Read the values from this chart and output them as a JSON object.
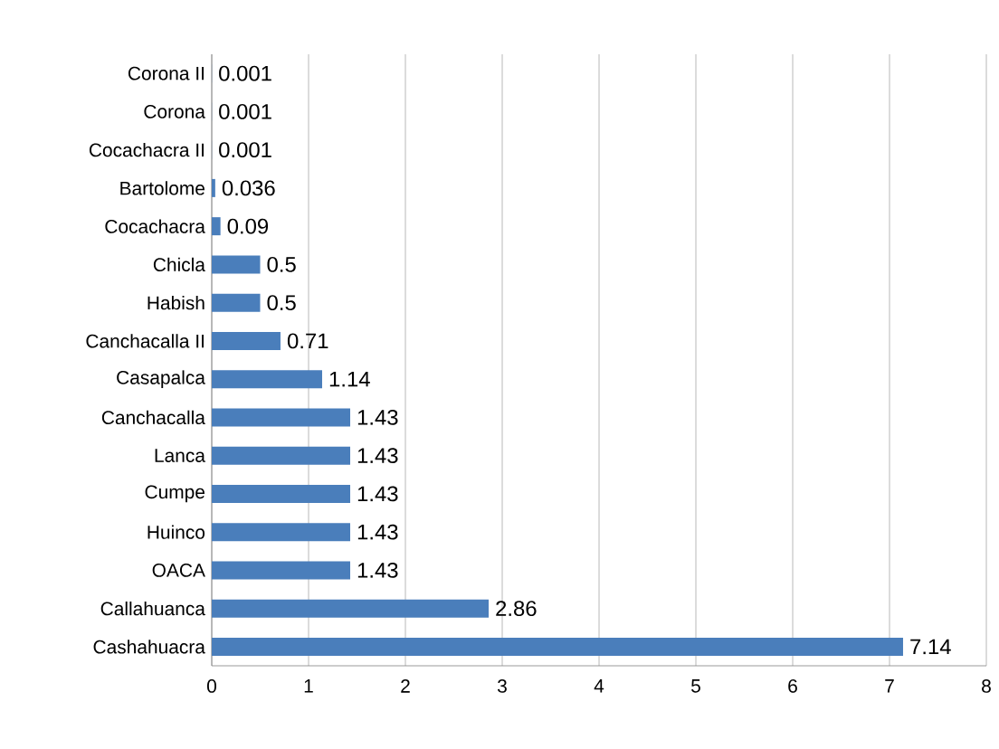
{
  "chart_data": {
    "type": "bar",
    "orientation": "horizontal",
    "categories": [
      "Corona II",
      "Corona",
      "Cocachacra II",
      "Bartolome",
      "Cocachacra",
      "Chicla",
      "Habish",
      "Canchacalla II",
      "Casapalca",
      "Canchacalla",
      "Lanca",
      "Cumpe",
      "Huinco",
      "OACA",
      "Callahuanca",
      "Cashahuacra"
    ],
    "values": [
      0.001,
      0.001,
      0.001,
      0.036,
      0.09,
      0.5,
      0.5,
      0.71,
      1.14,
      1.43,
      1.43,
      1.43,
      1.43,
      1.43,
      2.86,
      7.14
    ],
    "color": "#4a7ebb",
    "xlim": [
      0,
      8
    ],
    "xticks": [
      0,
      1,
      2,
      3,
      4,
      5,
      6,
      7,
      8
    ],
    "grid": "x",
    "data_labels": true
  }
}
